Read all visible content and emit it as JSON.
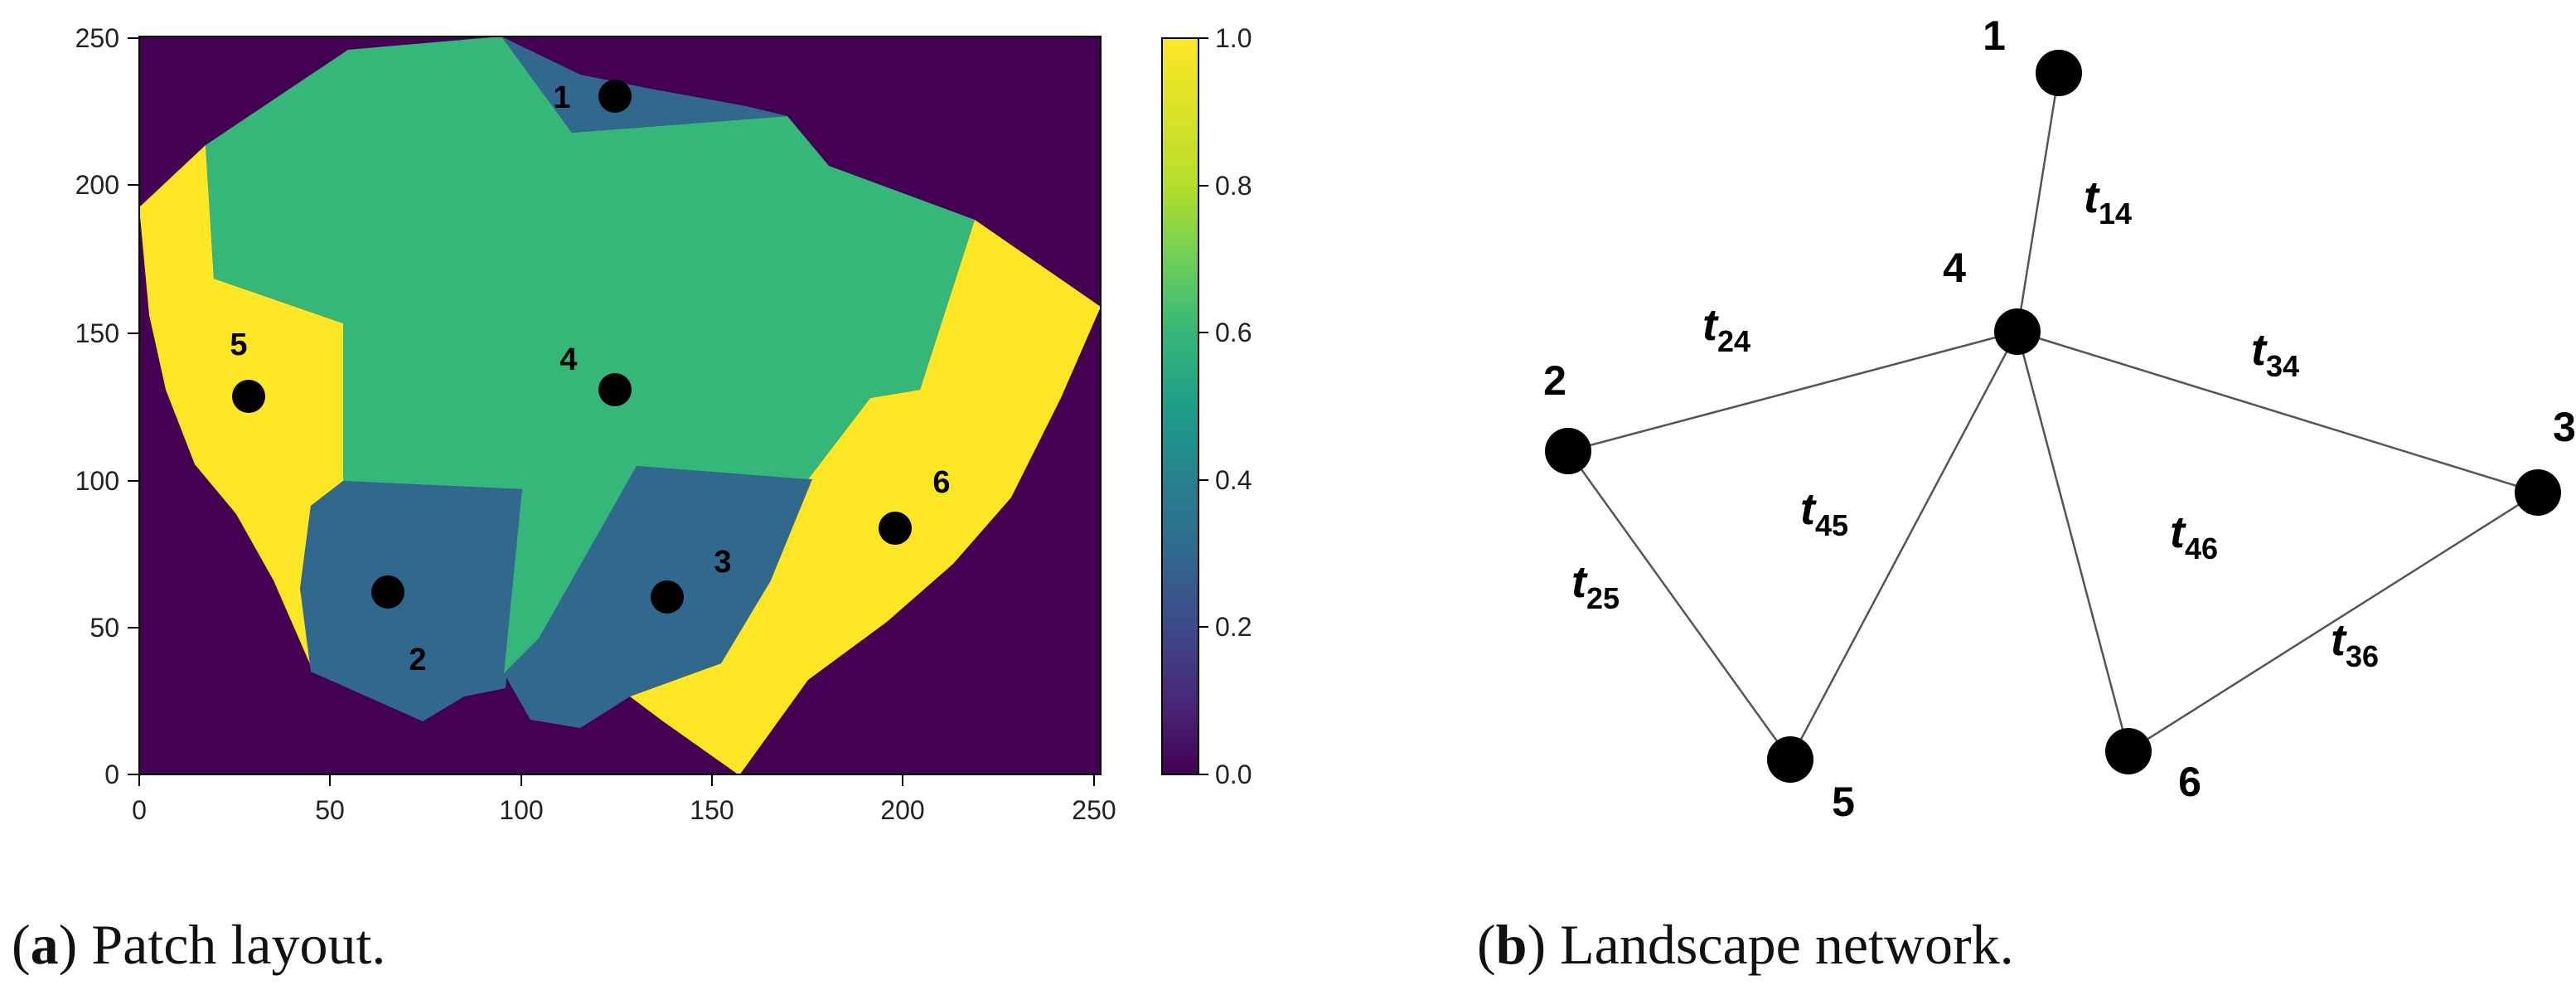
{
  "panel_a": {
    "x_ticks": [
      "0",
      "50",
      "100",
      "150",
      "200",
      "250"
    ],
    "y_ticks": [
      "0",
      "50",
      "100",
      "150",
      "200",
      "250"
    ],
    "colorbar_ticks": [
      "0.0",
      "0.2",
      "0.4",
      "0.6",
      "0.8",
      "1.0"
    ],
    "colors": {
      "background": "#440154",
      "mid": "#31688e",
      "high": "#35b779",
      "max": "#fde725"
    },
    "patches": [
      {
        "id": "1",
        "value": 0.4
      },
      {
        "id": "2",
        "value": 0.4
      },
      {
        "id": "3",
        "value": 0.4
      },
      {
        "id": "4",
        "value": 0.7
      },
      {
        "id": "5",
        "value": 1.0
      },
      {
        "id": "6",
        "value": 1.0
      }
    ],
    "patch_labels": [
      "1",
      "2",
      "3",
      "4",
      "5",
      "6"
    ]
  },
  "panel_b": {
    "nodes": [
      "1",
      "2",
      "3",
      "4",
      "5",
      "6"
    ],
    "edges": [
      {
        "from": "1",
        "to": "4",
        "base": "t",
        "sub": "14"
      },
      {
        "from": "2",
        "to": "4",
        "base": "t",
        "sub": "24"
      },
      {
        "from": "3",
        "to": "4",
        "base": "t",
        "sub": "34"
      },
      {
        "from": "4",
        "to": "5",
        "base": "t",
        "sub": "45"
      },
      {
        "from": "4",
        "to": "6",
        "base": "t",
        "sub": "46"
      },
      {
        "from": "2",
        "to": "5",
        "base": "t",
        "sub": "25"
      },
      {
        "from": "3",
        "to": "6",
        "base": "t",
        "sub": "36"
      }
    ]
  },
  "captions": {
    "a": {
      "tag": "a",
      "text": "Patch layout."
    },
    "b": {
      "tag": "b",
      "text": "Landscape network."
    }
  }
}
